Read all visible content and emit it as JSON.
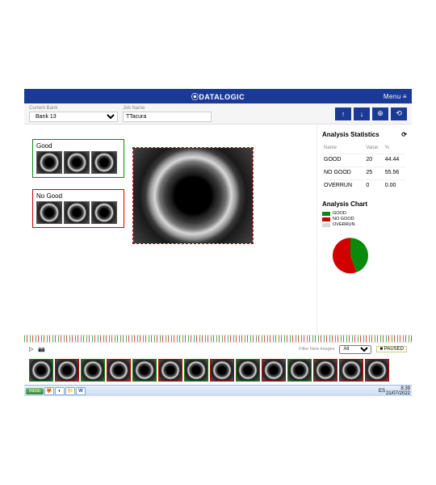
{
  "brand": "⦿DATALOGIC",
  "menu_label": "Menu",
  "toolbar": {
    "bank_label": "Current Bank",
    "bank_value": "Bank 13",
    "job_label": "Job Name",
    "job_value": "TTacura",
    "buttons": {
      "up": "↑",
      "down": "↓",
      "add": "⊕",
      "reset": "⟲"
    }
  },
  "categories": {
    "good_label": "Good",
    "nogood_label": "No Good",
    "good_color": "#0a8a0a",
    "nogood_color": "#d00000"
  },
  "stats": {
    "title": "Analysis Statistics",
    "refresh": "⟳",
    "headers": [
      "Name",
      "Value",
      "%"
    ],
    "rows": [
      {
        "name": "GOOD",
        "value": "20",
        "pct": "44.44"
      },
      {
        "name": "NO GOOD",
        "value": "25",
        "pct": "55.56"
      },
      {
        "name": "OVERRUN",
        "value": "0",
        "pct": "0.00"
      }
    ]
  },
  "chart": {
    "title": "Analysis Chart",
    "type": "pie",
    "slices": [
      {
        "label": "GOOD",
        "value": 44.44,
        "color": "#0a8a0a"
      },
      {
        "label": "NO GOOD",
        "value": 55.56,
        "color": "#d00000"
      },
      {
        "label": "OVERRUN",
        "value": 0,
        "color": "#d8d8d8"
      }
    ],
    "background_color": "#ffffff"
  },
  "controls": {
    "play": "▷",
    "camera": "📷",
    "filter_label": "Filter New Images",
    "filter_value": "All",
    "status": "PAUSED"
  },
  "filmstrip": [
    "good",
    "nogood",
    "good",
    "nogood",
    "good",
    "nogood",
    "good",
    "nogood",
    "good",
    "nogood",
    "good",
    "nogood",
    "nogood",
    "nogood"
  ],
  "taskbar": {
    "start": "Inicio",
    "lang": "ES",
    "time": "8:39",
    "date": "21/07/2022"
  },
  "colors": {
    "brand_blue": "#1a3a96",
    "bg_gray": "#f5f5f5"
  }
}
